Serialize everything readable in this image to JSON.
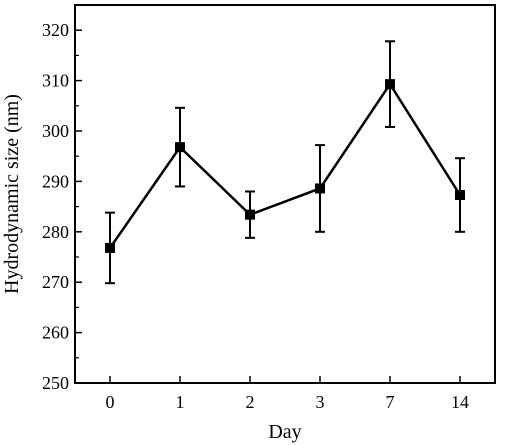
{
  "chart_data": {
    "type": "line",
    "title": "",
    "xlabel": "Day",
    "ylabel": "Hydrodynamic size (nm)",
    "categories": [
      "0",
      "1",
      "2",
      "3",
      "7",
      "14"
    ],
    "series": [
      {
        "values": [
          276.8,
          296.8,
          283.4,
          288.6,
          309.3,
          287.3
        ],
        "error": [
          7.0,
          7.8,
          4.6,
          8.6,
          8.5,
          7.3
        ]
      }
    ],
    "ylim": [
      250,
      325
    ],
    "yticks": [
      250,
      260,
      270,
      280,
      290,
      300,
      310,
      320
    ],
    "grid": false,
    "marker": "square",
    "color": "#000000"
  }
}
